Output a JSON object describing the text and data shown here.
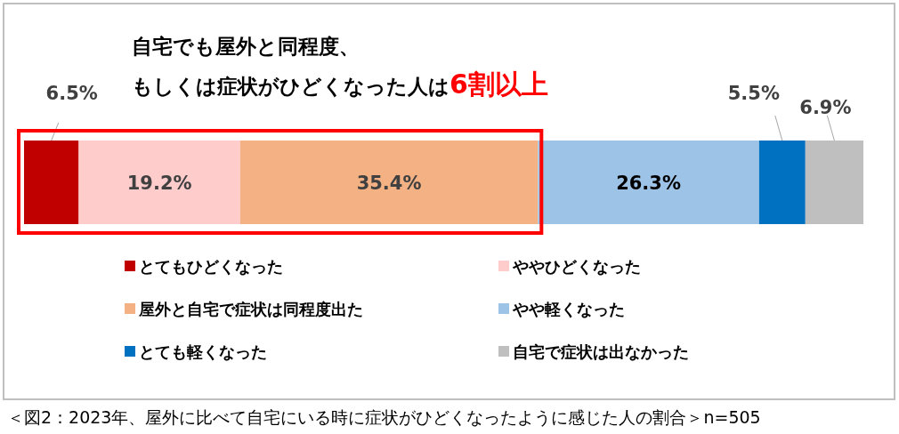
{
  "chart_data": {
    "type": "bar",
    "orientation": "horizontal",
    "stacked": true,
    "title": "自宅でも屋外と同程度、",
    "subtitle": "もしくは症状がひどくなった人は",
    "categories": [
      null
    ],
    "series": [
      {
        "name": "とてもひどくなった",
        "color": "#c00000",
        "values": [
          6.5
        ],
        "value_labels": [
          "6.5%"
        ]
      },
      {
        "name": "ややひどくなった",
        "color": "#ffcccc",
        "values": [
          19.2
        ],
        "value_labels": [
          "19.2%"
        ]
      },
      {
        "name": "屋外と自宅で症状は同程度出た",
        "color": "#f4b183",
        "values": [
          35.4
        ],
        "value_labels": [
          "35.4%"
        ]
      },
      {
        "name": "やや軽くなった",
        "color": "#9dc3e6",
        "values": [
          26.3
        ],
        "value_labels": [
          "26.3%"
        ]
      },
      {
        "name": "とても軽くなった",
        "color": "#0070c0",
        "values": [
          5.5
        ],
        "value_labels": [
          "5.5%"
        ]
      },
      {
        "name": "自宅で症状は出なかった",
        "color": "#bfbfbf",
        "values": [
          6.9
        ],
        "value_labels": [
          "6.9%"
        ]
      }
    ],
    "legend": "bottom",
    "annotations": [
      "6割以上",
      "＜図2：2023年、屋外に比べて自宅にいる時に症状がひどくなったように感じた人の割合＞n=505"
    ]
  }
}
